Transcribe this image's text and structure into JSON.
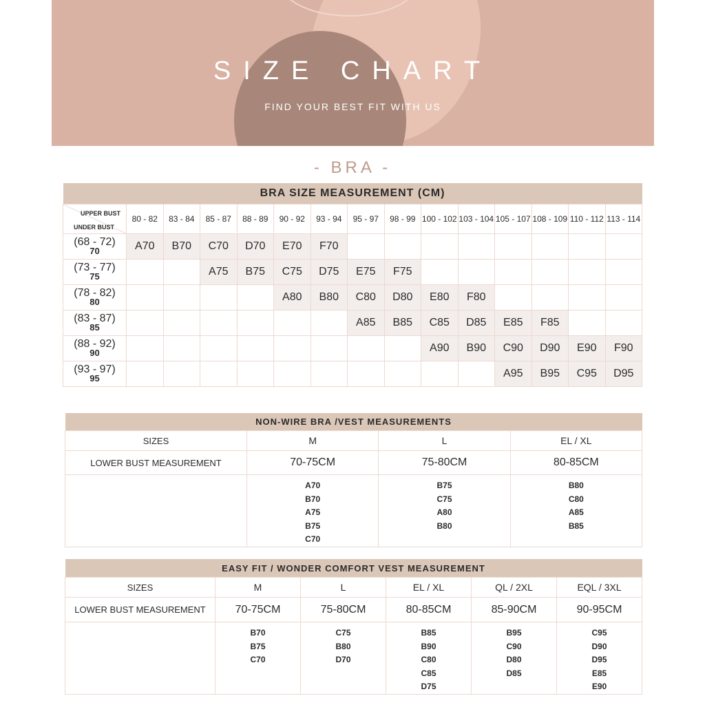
{
  "banner": {
    "title": "SIZE CHART",
    "subtitle": "FIND YOUR BEST FIT WITH US"
  },
  "section_title": "- BRA -",
  "bra_table": {
    "title": "BRA SIZE MEASUREMENT (CM)",
    "corner_upper": "UPPER BUST",
    "corner_under": "UNDER BUST",
    "upper_bust": [
      "80 - 82",
      "83 - 84",
      "85 - 87",
      "88 - 89",
      "90 - 92",
      "93 - 94",
      "95 - 97",
      "98 - 99",
      "100 - 102",
      "103 - 104",
      "105 - 107",
      "108 - 109",
      "110 - 112",
      "113 - 114"
    ],
    "rows": [
      {
        "range": "(68 - 72)",
        "band": "70",
        "cells": [
          "A70",
          "B70",
          "C70",
          "D70",
          "E70",
          "F70",
          "",
          "",
          "",
          "",
          "",
          "",
          "",
          ""
        ]
      },
      {
        "range": "(73 - 77)",
        "band": "75",
        "cells": [
          "",
          "",
          "A75",
          "B75",
          "C75",
          "D75",
          "E75",
          "F75",
          "",
          "",
          "",
          "",
          "",
          ""
        ]
      },
      {
        "range": "(78 - 82)",
        "band": "80",
        "cells": [
          "",
          "",
          "",
          "",
          "A80",
          "B80",
          "C80",
          "D80",
          "E80",
          "F80",
          "",
          "",
          "",
          ""
        ]
      },
      {
        "range": "(83 - 87)",
        "band": "85",
        "cells": [
          "",
          "",
          "",
          "",
          "",
          "",
          "A85",
          "B85",
          "C85",
          "D85",
          "E85",
          "F85",
          "",
          ""
        ]
      },
      {
        "range": "(88 - 92)",
        "band": "90",
        "cells": [
          "",
          "",
          "",
          "",
          "",
          "",
          "",
          "",
          "A90",
          "B90",
          "C90",
          "D90",
          "E90",
          "F90"
        ]
      },
      {
        "range": "(93 - 97)",
        "band": "95",
        "cells": [
          "",
          "",
          "",
          "",
          "",
          "",
          "",
          "",
          "",
          "",
          "A95",
          "B95",
          "C95",
          "D95"
        ]
      }
    ]
  },
  "nonwire_table": {
    "title": "NON-WIRE BRA /VEST MEASUREMENTS",
    "sizes_label": "SIZES",
    "measure_label": "LOWER BUST MEASUREMENT",
    "columns": [
      {
        "size": "M",
        "measure": "70-75CM",
        "fits": [
          "A70",
          "B70",
          "A75",
          "B75",
          "C70"
        ]
      },
      {
        "size": "L",
        "measure": "75-80CM",
        "fits": [
          "B75",
          "C75",
          "A80",
          "B80"
        ]
      },
      {
        "size": "EL / XL",
        "measure": "80-85CM",
        "fits": [
          "B80",
          "C80",
          "A85",
          "B85"
        ]
      }
    ]
  },
  "easyfit_table": {
    "title": "EASY FIT  / WONDER COMFORT VEST MEASUREMENT",
    "sizes_label": "SIZES",
    "measure_label": "LOWER BUST MEASUREMENT",
    "columns": [
      {
        "size": "M",
        "measure": "70-75CM",
        "fits": [
          "B70",
          "B75",
          "C70"
        ]
      },
      {
        "size": "L",
        "measure": "75-80CM",
        "fits": [
          "C75",
          "B80",
          "D70"
        ]
      },
      {
        "size": "EL / XL",
        "measure": "80-85CM",
        "fits": [
          "B85",
          "B90",
          "C80",
          "C85",
          "D75"
        ]
      },
      {
        "size": "QL / 2XL",
        "measure": "85-90CM",
        "fits": [
          "B95",
          "C90",
          "D80",
          "D85"
        ]
      },
      {
        "size": "EQL / 3XL",
        "measure": "90-95CM",
        "fits": [
          "C95",
          "D90",
          "D95",
          "E85",
          "E90"
        ]
      }
    ]
  },
  "colors": {
    "banner": "#d9b2a3",
    "header_band": "#dbc7b8",
    "filled_cell": "#f3eeeb",
    "section_title": "#c09a8c"
  }
}
